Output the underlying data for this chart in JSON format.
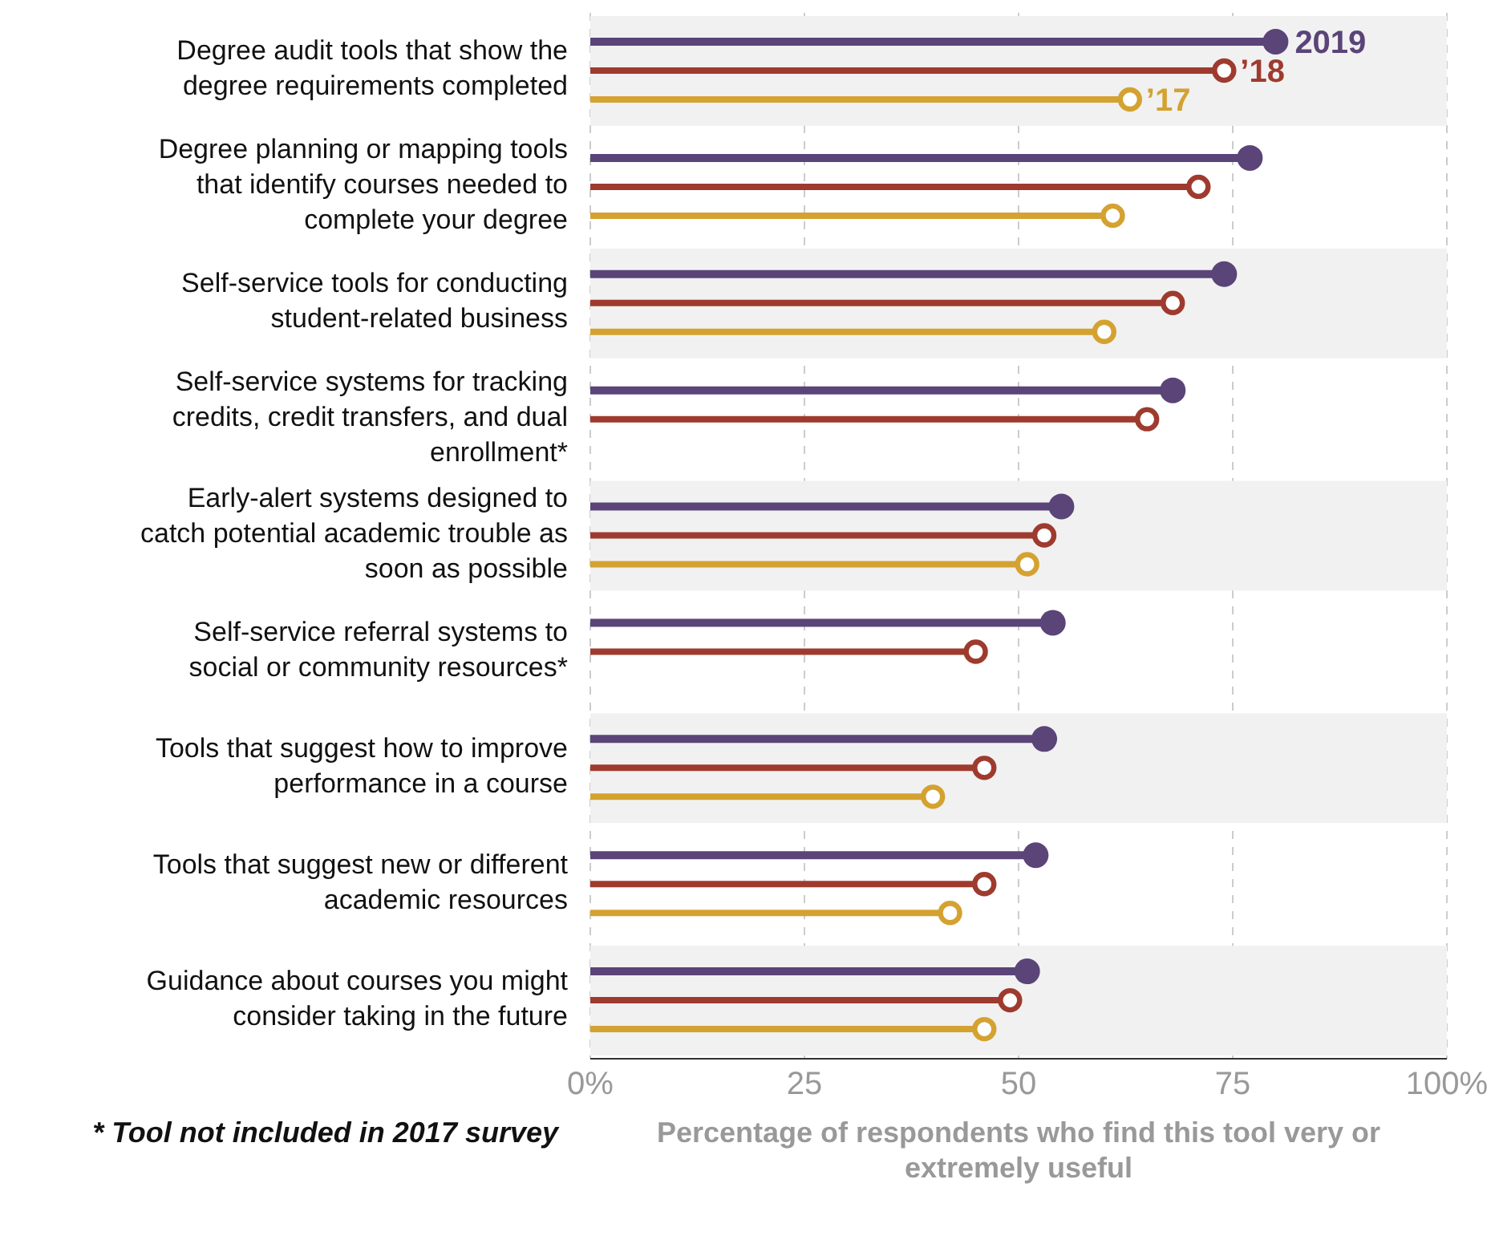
{
  "chart_data": {
    "type": "lollipop",
    "orientation": "horizontal",
    "categories": [
      "Degree audit tools that show the degree requirements completed",
      "Degree planning or mapping tools that identify courses needed to complete your degree",
      "Self-service tools for conducting student-related business",
      "Self-service systems for tracking credits, credit transfers, and dual enrollment*",
      "Early-alert systems designed to catch potential academic trouble as soon as possible",
      "Self-service referral systems to social or community resources*",
      "Tools that suggest how to improve performance in a course",
      "Tools that suggest new or different academic resources",
      "Guidance about courses you might consider taking in the future"
    ],
    "series": [
      {
        "name": "2019",
        "color": "#5a4478",
        "values": [
          80,
          77,
          74,
          68,
          55,
          54,
          53,
          52,
          51
        ]
      },
      {
        "name": "’18",
        "color": "#9e3b2e",
        "values": [
          74,
          71,
          68,
          65,
          53,
          45,
          46,
          46,
          49
        ]
      },
      {
        "name": "’17",
        "color": "#d4a231",
        "values": [
          63,
          61,
          60,
          null,
          51,
          null,
          40,
          42,
          46
        ]
      }
    ],
    "xlim": [
      0,
      100
    ],
    "xticks": [
      {
        "value": 0,
        "label": "0%"
      },
      25,
      50,
      75,
      {
        "value": 100,
        "label": "100%"
      }
    ],
    "xlabel": "Percentage of respondents who find this tool very or extremely useful",
    "annotations": [
      "* Tool not included in 2017 survey"
    ],
    "grid": "x",
    "marker": "circle"
  }
}
